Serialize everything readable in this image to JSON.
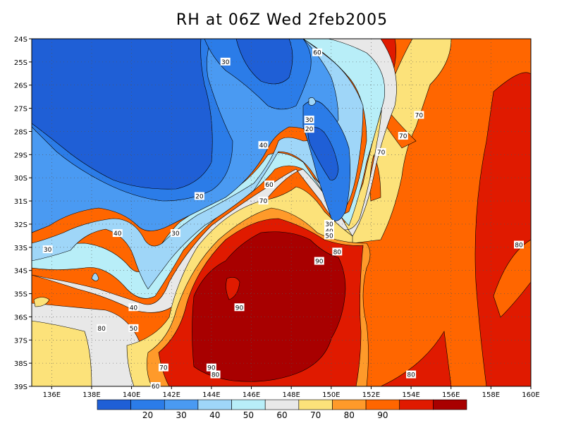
{
  "title": "RH at 06Z Wed 2feb2005",
  "map": {
    "lon_range": [
      135,
      160
    ],
    "lat_range": [
      -39,
      -24
    ],
    "lon_ticks": [
      "136E",
      "138E",
      "140E",
      "142E",
      "144E",
      "146E",
      "148E",
      "150E",
      "152E",
      "154E",
      "156E",
      "158E",
      "160E"
    ],
    "lat_ticks": [
      "24S",
      "25S",
      "26S",
      "27S",
      "28S",
      "29S",
      "30S",
      "31S",
      "32S",
      "33S",
      "34S",
      "35S",
      "36S",
      "37S",
      "38S",
      "39S"
    ],
    "grid": "dotted"
  },
  "legend": {
    "levels": [
      {
        "color": "#1f5fd6"
      },
      {
        "color": "#2b7ce8",
        "label": "20"
      },
      {
        "color": "#4a9af2",
        "label": "30"
      },
      {
        "color": "#9fd6f8",
        "label": "40"
      },
      {
        "color": "#b8eef8",
        "label": "50"
      },
      {
        "color": "#e8e8e8",
        "label": "60"
      },
      {
        "color": "#fce27a",
        "label": "70"
      },
      {
        "color": "#ff9a2a",
        "label": "80"
      },
      {
        "color": "#ff6600",
        "label": "90"
      },
      {
        "color": "#e01a00"
      },
      {
        "color": "#a80000"
      }
    ]
  },
  "contour_labels": [
    {
      "text": "60",
      "lon": 149.3,
      "lat": -24.6
    },
    {
      "text": "30",
      "lon": 144.7,
      "lat": -25.0
    },
    {
      "text": "30",
      "lon": 148.9,
      "lat": -27.5
    },
    {
      "text": "20",
      "lon": 148.9,
      "lat": -27.9
    },
    {
      "text": "70",
      "lon": 154.4,
      "lat": -27.3
    },
    {
      "text": "70",
      "lon": 153.6,
      "lat": -28.2
    },
    {
      "text": "70",
      "lon": 152.5,
      "lat": -28.9
    },
    {
      "text": "40",
      "lon": 146.6,
      "lat": -28.6
    },
    {
      "text": "60",
      "lon": 146.9,
      "lat": -30.3
    },
    {
      "text": "70",
      "lon": 146.6,
      "lat": -31.0
    },
    {
      "text": "20",
      "lon": 143.4,
      "lat": -30.8
    },
    {
      "text": "30",
      "lon": 149.9,
      "lat": -32.0
    },
    {
      "text": "40",
      "lon": 149.9,
      "lat": -32.3
    },
    {
      "text": "50",
      "lon": 149.9,
      "lat": -32.5
    },
    {
      "text": "40",
      "lon": 139.3,
      "lat": -32.4
    },
    {
      "text": "30",
      "lon": 142.2,
      "lat": -32.4
    },
    {
      "text": "30",
      "lon": 135.8,
      "lat": -33.1
    },
    {
      "text": "80",
      "lon": 150.3,
      "lat": -33.2
    },
    {
      "text": "90",
      "lon": 149.4,
      "lat": -33.6
    },
    {
      "text": "80",
      "lon": 159.4,
      "lat": -32.9
    },
    {
      "text": "40",
      "lon": 140.1,
      "lat": -35.6
    },
    {
      "text": "90",
      "lon": 145.4,
      "lat": -35.6
    },
    {
      "text": "50",
      "lon": 140.1,
      "lat": -36.5
    },
    {
      "text": "80",
      "lon": 138.5,
      "lat": -36.5
    },
    {
      "text": "70",
      "lon": 141.6,
      "lat": -38.2
    },
    {
      "text": "90",
      "lon": 144.0,
      "lat": -38.2
    },
    {
      "text": "80",
      "lon": 144.2,
      "lat": -38.5
    },
    {
      "text": "60",
      "lon": 141.2,
      "lat": -39.0
    },
    {
      "text": "80",
      "lon": 154.0,
      "lat": -38.5
    }
  ]
}
